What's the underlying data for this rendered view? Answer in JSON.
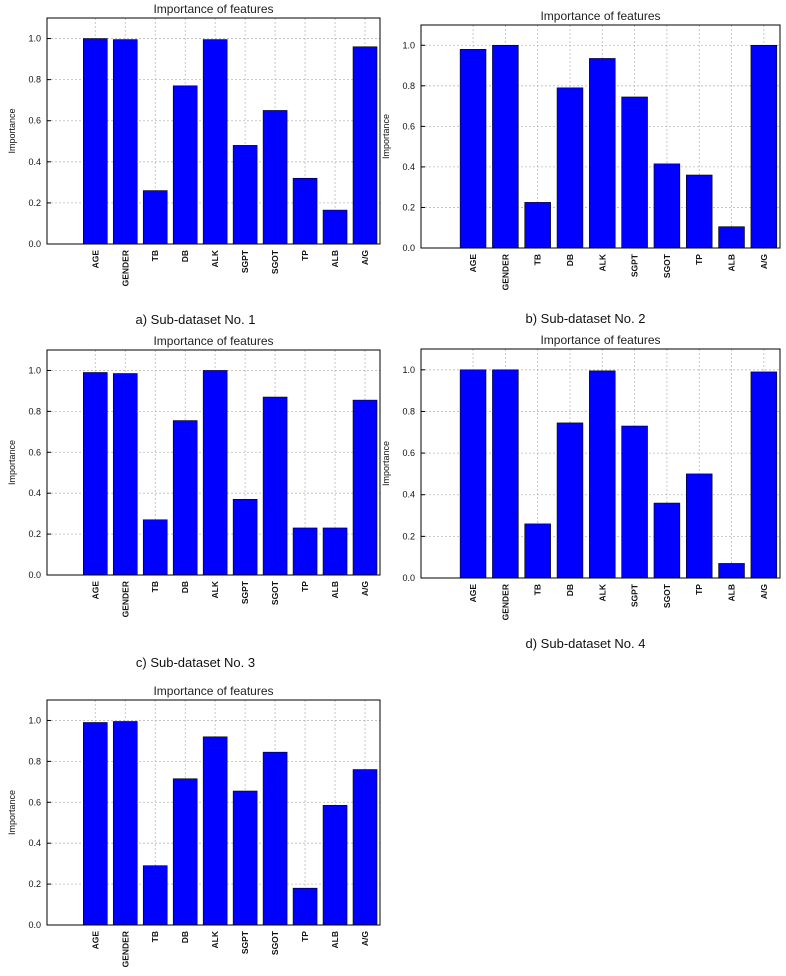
{
  "colors": {
    "bar": "#0000ff",
    "frame": "#000000",
    "grid": "#bbbbbb"
  },
  "chart_data": [
    {
      "type": "bar",
      "title": "Importance of features",
      "ylabel": "Importance",
      "xlabel": "",
      "caption": "a) Sub-dataset No. 1",
      "categories": [
        "AGE",
        "GENDER",
        "TB",
        "DB",
        "ALK",
        "SGPT",
        "SGOT",
        "TP",
        "ALB",
        "A/G"
      ],
      "values": [
        1.0,
        0.995,
        0.26,
        0.77,
        0.995,
        0.48,
        0.65,
        0.32,
        0.165,
        0.96
      ],
      "ylim": [
        0,
        1.1
      ],
      "yticks": [
        "0.0",
        "0.2",
        "0.4",
        "0.6",
        "0.8",
        "1.0"
      ],
      "grid": true
    },
    {
      "type": "bar",
      "title": "Importance of features",
      "ylabel": "Importance",
      "xlabel": "",
      "caption": "b) Sub-dataset No. 2",
      "categories": [
        "AGE",
        "GENDER",
        "TB",
        "DB",
        "ALK",
        "SGPT",
        "SGOT",
        "TP",
        "ALB",
        "A/G"
      ],
      "values": [
        0.98,
        1.0,
        0.225,
        0.79,
        0.935,
        0.745,
        0.415,
        0.36,
        0.105,
        1.0
      ],
      "ylim": [
        0,
        1.1
      ],
      "yticks": [
        "0.0",
        "0.2",
        "0.4",
        "0.6",
        "0.8",
        "1.0"
      ],
      "grid": true
    },
    {
      "type": "bar",
      "title": "Importance of features",
      "ylabel": "Importance",
      "xlabel": "",
      "caption": "c) Sub-dataset No. 3",
      "categories": [
        "AGE",
        "GENDER",
        "TB",
        "DB",
        "ALK",
        "SGPT",
        "SGOT",
        "TP",
        "ALB",
        "A/G"
      ],
      "values": [
        0.99,
        0.985,
        0.27,
        0.755,
        1.0,
        0.37,
        0.87,
        0.23,
        0.23,
        0.855
      ],
      "ylim": [
        0,
        1.1
      ],
      "yticks": [
        "0.0",
        "0.2",
        "0.4",
        "0.6",
        "0.8",
        "1.0"
      ],
      "grid": true
    },
    {
      "type": "bar",
      "title": "Importance of features",
      "ylabel": "Importance",
      "xlabel": "",
      "caption": "d) Sub-dataset No. 4",
      "categories": [
        "AGE",
        "GENDER",
        "TB",
        "DB",
        "ALK",
        "SGPT",
        "SGOT",
        "TP",
        "ALB",
        "A/G"
      ],
      "values": [
        1.0,
        1.0,
        0.26,
        0.745,
        0.995,
        0.73,
        0.36,
        0.5,
        0.07,
        0.99
      ],
      "ylim": [
        0,
        1.1
      ],
      "yticks": [
        "0.0",
        "0.2",
        "0.4",
        "0.6",
        "0.8",
        "1.0"
      ],
      "grid": true
    },
    {
      "type": "bar",
      "title": "Importance of features",
      "ylabel": "Importance",
      "xlabel": "",
      "caption": "",
      "categories": [
        "AGE",
        "GENDER",
        "TB",
        "DB",
        "ALK",
        "SGPT",
        "SGOT",
        "TP",
        "ALB",
        "A/G"
      ],
      "values": [
        0.99,
        0.995,
        0.29,
        0.715,
        0.92,
        0.655,
        0.845,
        0.18,
        0.585,
        0.76
      ],
      "ylim": [
        0,
        1.1
      ],
      "yticks": [
        "0.0",
        "0.2",
        "0.4",
        "0.6",
        "0.8",
        "1.0"
      ],
      "grid": true
    }
  ]
}
